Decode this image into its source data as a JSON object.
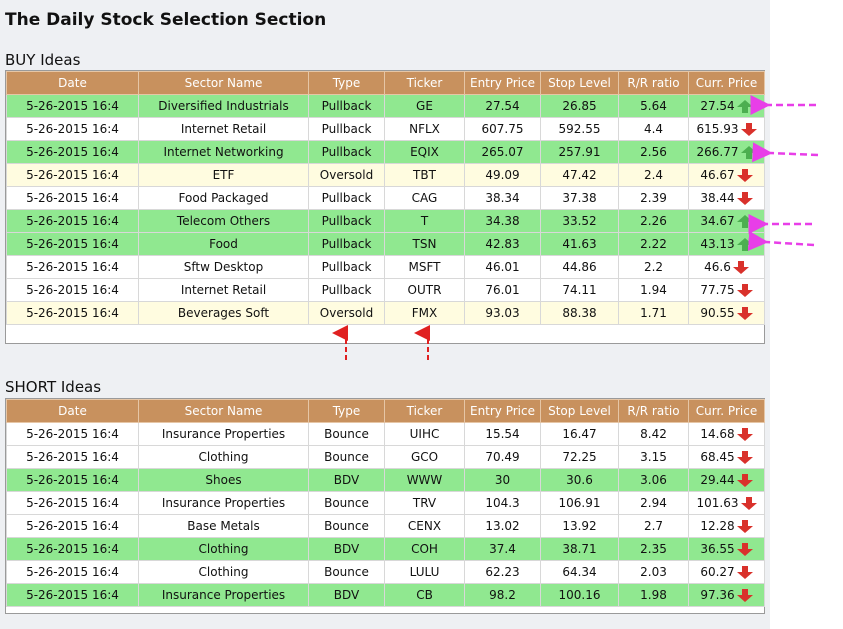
{
  "page": {
    "title": "The Daily Stock Selection Section"
  },
  "columns": [
    "Date",
    "Sector Name",
    "Type",
    "Ticker",
    "Entry Price",
    "Stop Level",
    "R/R ratio",
    "Curr. Price"
  ],
  "colors": {
    "header": "#c8915e",
    "green_row": "#90e890",
    "yellow_row": "#fffce0",
    "ticker": "#3d5fa8",
    "up": "#4caf50",
    "down": "#d9312b",
    "annotation_magenta": "#e83ee8",
    "annotation_red": "#e02020"
  },
  "buy": {
    "title": "BUY Ideas",
    "rows": [
      {
        "date": "5-26-2015 16:4",
        "sector": "Diversified Industrials",
        "type": "Pullback",
        "ticker": "GE",
        "entry": "27.54",
        "stop": "26.85",
        "rr": "5.64",
        "curr": "27.54",
        "dir": "up",
        "row": "green"
      },
      {
        "date": "5-26-2015 16:4",
        "sector": "Internet Retail",
        "type": "Pullback",
        "ticker": "NFLX",
        "entry": "607.75",
        "stop": "592.55",
        "rr": "4.4",
        "curr": "615.93",
        "dir": "down",
        "row": "white"
      },
      {
        "date": "5-26-2015 16:4",
        "sector": "Internet Networking",
        "type": "Pullback",
        "ticker": "EQIX",
        "entry": "265.07",
        "stop": "257.91",
        "rr": "2.56",
        "curr": "266.77",
        "dir": "up",
        "row": "green"
      },
      {
        "date": "5-26-2015 16:4",
        "sector": "ETF",
        "type": "Oversold",
        "ticker": "TBT",
        "entry": "49.09",
        "stop": "47.42",
        "rr": "2.4",
        "curr": "46.67",
        "dir": "down",
        "row": "yellow"
      },
      {
        "date": "5-26-2015 16:4",
        "sector": "Food Packaged",
        "type": "Pullback",
        "ticker": "CAG",
        "entry": "38.34",
        "stop": "37.38",
        "rr": "2.39",
        "curr": "38.44",
        "dir": "down",
        "row": "white"
      },
      {
        "date": "5-26-2015 16:4",
        "sector": "Telecom Others",
        "type": "Pullback",
        "ticker": "T",
        "entry": "34.38",
        "stop": "33.52",
        "rr": "2.26",
        "curr": "34.67",
        "dir": "up",
        "row": "green"
      },
      {
        "date": "5-26-2015 16:4",
        "sector": "Food",
        "type": "Pullback",
        "ticker": "TSN",
        "entry": "42.83",
        "stop": "41.63",
        "rr": "2.22",
        "curr": "43.13",
        "dir": "up",
        "row": "green"
      },
      {
        "date": "5-26-2015 16:4",
        "sector": "Sftw Desktop",
        "type": "Pullback",
        "ticker": "MSFT",
        "entry": "46.01",
        "stop": "44.86",
        "rr": "2.2",
        "curr": "46.6",
        "dir": "down",
        "row": "white"
      },
      {
        "date": "5-26-2015 16:4",
        "sector": "Internet Retail",
        "type": "Pullback",
        "ticker": "OUTR",
        "entry": "76.01",
        "stop": "74.11",
        "rr": "1.94",
        "curr": "77.75",
        "dir": "down",
        "row": "white"
      },
      {
        "date": "5-26-2015 16:4",
        "sector": "Beverages Soft",
        "type": "Oversold",
        "ticker": "FMX",
        "entry": "93.03",
        "stop": "88.38",
        "rr": "1.71",
        "curr": "90.55",
        "dir": "down",
        "row": "yellow"
      }
    ]
  },
  "short": {
    "title": "SHORT Ideas",
    "rows": [
      {
        "date": "5-26-2015 16:4",
        "sector": "Insurance Properties",
        "type": "Bounce",
        "ticker": "UIHC",
        "entry": "15.54",
        "stop": "16.47",
        "rr": "8.42",
        "curr": "14.68",
        "dir": "down",
        "row": "white"
      },
      {
        "date": "5-26-2015 16:4",
        "sector": "Clothing",
        "type": "Bounce",
        "ticker": "GCO",
        "entry": "70.49",
        "stop": "72.25",
        "rr": "3.15",
        "curr": "68.45",
        "dir": "down",
        "row": "white"
      },
      {
        "date": "5-26-2015 16:4",
        "sector": "Shoes",
        "type": "BDV",
        "ticker": "WWW",
        "entry": "30",
        "stop": "30.6",
        "rr": "3.06",
        "curr": "29.44",
        "dir": "down",
        "row": "green"
      },
      {
        "date": "5-26-2015 16:4",
        "sector": "Insurance Properties",
        "type": "Bounce",
        "ticker": "TRV",
        "entry": "104.3",
        "stop": "106.91",
        "rr": "2.94",
        "curr": "101.63",
        "dir": "down",
        "row": "white"
      },
      {
        "date": "5-26-2015 16:4",
        "sector": "Base Metals",
        "type": "Bounce",
        "ticker": "CENX",
        "entry": "13.02",
        "stop": "13.92",
        "rr": "2.7",
        "curr": "12.28",
        "dir": "down",
        "row": "white"
      },
      {
        "date": "5-26-2015 16:4",
        "sector": "Clothing",
        "type": "BDV",
        "ticker": "COH",
        "entry": "37.4",
        "stop": "38.71",
        "rr": "2.35",
        "curr": "36.55",
        "dir": "down",
        "row": "green"
      },
      {
        "date": "5-26-2015 16:4",
        "sector": "Clothing",
        "type": "Bounce",
        "ticker": "LULU",
        "entry": "62.23",
        "stop": "64.34",
        "rr": "2.03",
        "curr": "60.27",
        "dir": "down",
        "row": "white"
      },
      {
        "date": "5-26-2015 16:4",
        "sector": "Insurance Properties",
        "type": "BDV",
        "ticker": "CB",
        "entry": "98.2",
        "stop": "100.16",
        "rr": "1.98",
        "curr": "97.36",
        "dir": "down",
        "row": "green"
      }
    ]
  }
}
